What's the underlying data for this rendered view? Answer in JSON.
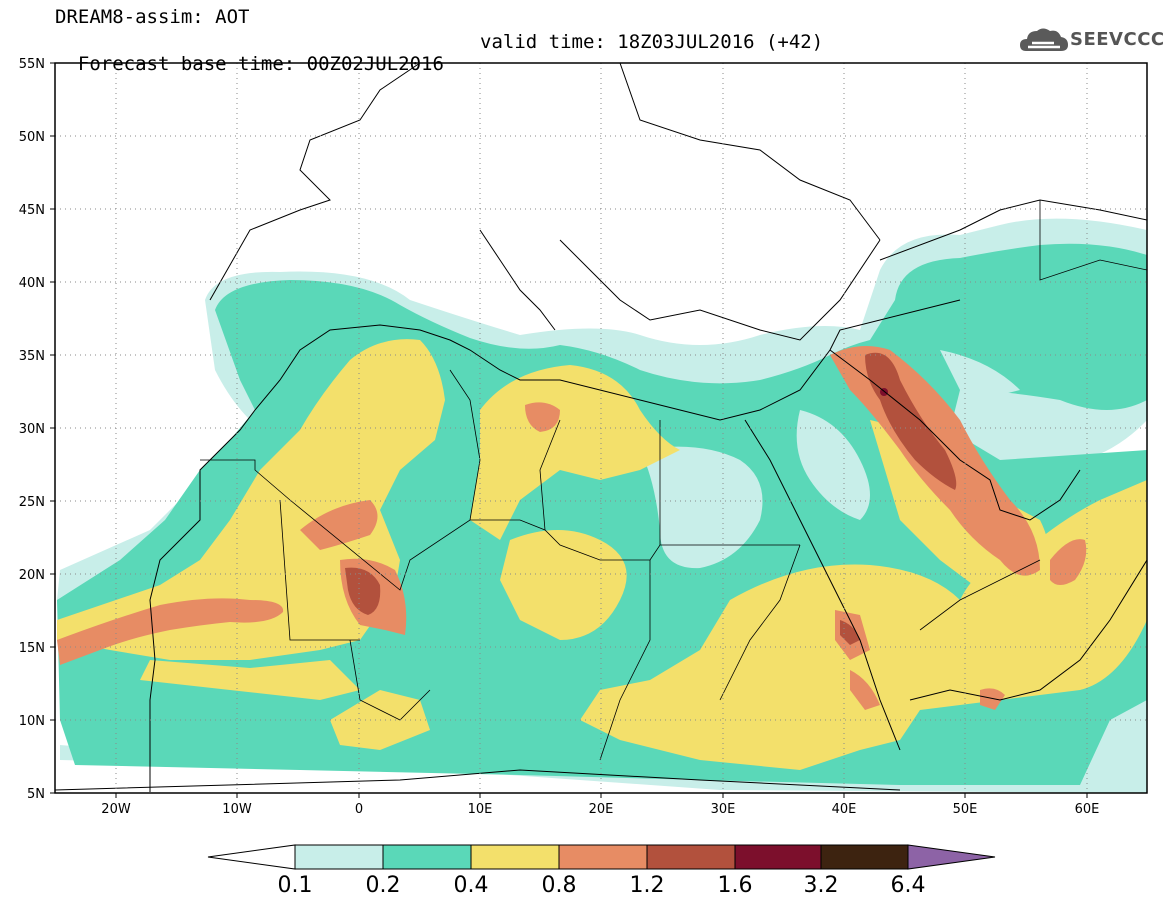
{
  "header": {
    "line1": "DREAM8-assim: AOT",
    "line2_base": "Forecast base time: 00Z02JUL2016",
    "line2_valid": "valid time: 18Z03JUL2016 (+42)"
  },
  "logo": {
    "text": "SEEVCCC",
    "icon": "cloud-icon"
  },
  "axes": {
    "x_ticks": [
      "20W",
      "10W",
      "0",
      "10E",
      "20E",
      "30E",
      "40E",
      "50E",
      "60E"
    ],
    "y_ticks": [
      "55N",
      "50N",
      "45N",
      "40N",
      "35N",
      "30N",
      "25N",
      "20N",
      "15N",
      "10N",
      "5N"
    ],
    "lon_range": [
      -25,
      65
    ],
    "lat_range": [
      5,
      55
    ],
    "grid": "dotted"
  },
  "colorbar": {
    "labels": [
      "0.1",
      "0.2",
      "0.4",
      "0.8",
      "1.2",
      "1.6",
      "3.2",
      "6.4"
    ],
    "colors": [
      "#ffffff",
      "#c8eee9",
      "#5ad8b8",
      "#f3e06b",
      "#e78c64",
      "#b2513d",
      "#7c0f2c",
      "#3d2310",
      "#8d63a6"
    ]
  },
  "colors": {
    "aot_0_1_0_2": "#c8eee9",
    "aot_0_2_0_4": "#5ad8b8",
    "aot_0_4_0_8": "#f3e06b",
    "aot_0_8_1_2": "#e78c64",
    "aot_1_2_1_6": "#b2513d",
    "aot_1_6_3_2": "#7c0f2c"
  }
}
